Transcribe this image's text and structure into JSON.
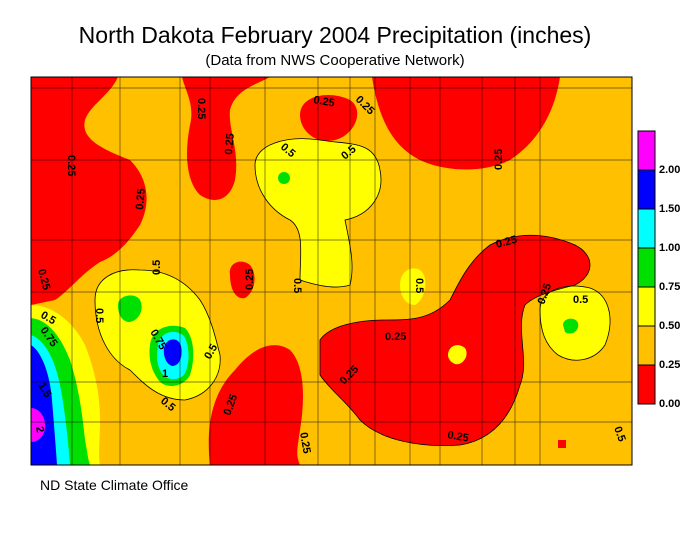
{
  "title": "North Dakota February 2004 Precipitation (inches)",
  "subtitle": "(Data from NWS Cooperative Network)",
  "credit": "ND State Climate Office",
  "legend": [
    {
      "label": "2.00",
      "color": "#ff00ff"
    },
    {
      "label": "1.50",
      "color": "#0000ff"
    },
    {
      "label": "1.00",
      "color": "#00ffff"
    },
    {
      "label": "0.75",
      "color": "#00e000"
    },
    {
      "label": "0.50",
      "color": "#ffff00"
    },
    {
      "label": "0.25",
      "color": "#ffc000"
    },
    {
      "label": "0.00",
      "color": "#ff0000"
    }
  ],
  "contour_labels": [
    "0.25",
    "0.5",
    "0.75",
    "1",
    "1.5",
    "2"
  ],
  "colors": {
    "band_0_25": "#ff0000",
    "band_25_50": "#ffc000",
    "band_50_75": "#ffff00",
    "band_75_100": "#00e000",
    "band_100_150": "#00ffff",
    "band_150_200": "#0000ff",
    "band_200_plus": "#ff00ff"
  }
}
